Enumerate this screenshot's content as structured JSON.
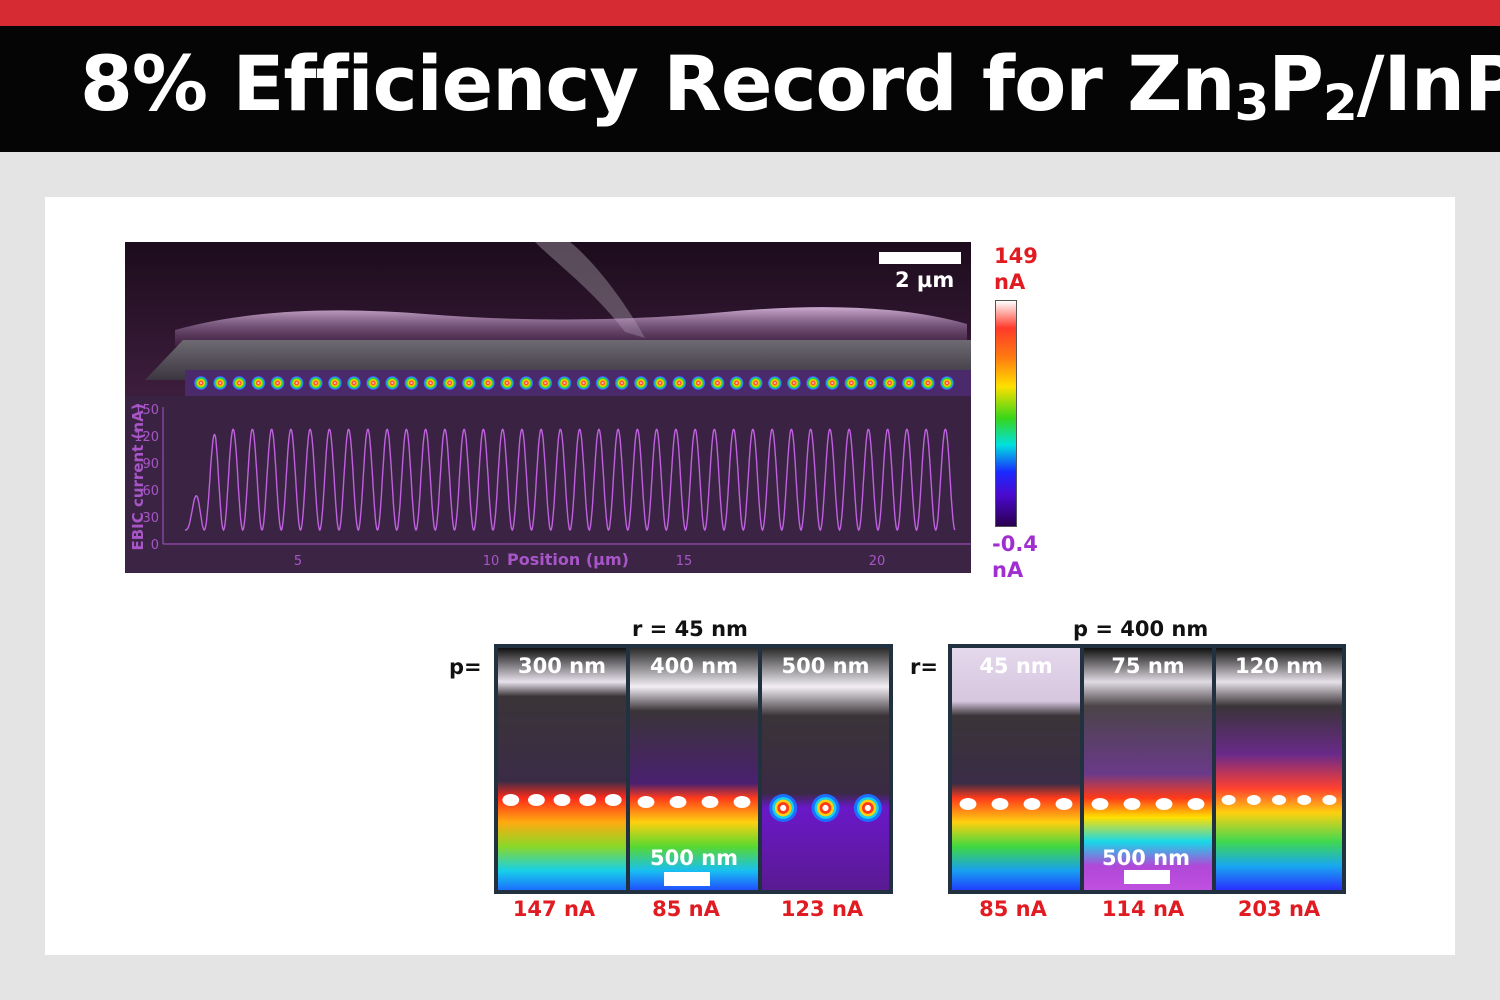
{
  "header": {
    "title_pre": "8% Efficiency Record for Zn",
    "sub1": "3",
    "title_mid": "P",
    "sub2": "2",
    "title_post": "/InP"
  },
  "main_figure": {
    "scale_bar": "2 µm",
    "y_axis_label": "EBIC current (nA)",
    "y_ticks": [
      "150",
      "120",
      "90",
      "60",
      "30",
      "0"
    ],
    "x_axis_label": "Position (µm)",
    "x_ticks": [
      "5",
      "10",
      "15",
      "20"
    ],
    "peak_count": 40
  },
  "colorbar": {
    "max_value": "149",
    "max_unit": "nA",
    "min_value": "-0.4",
    "min_unit": "nA",
    "colors": [
      "#ffffff",
      "#ff3a2a",
      "#ff7a10",
      "#ffe000",
      "#38d618",
      "#00e0e0",
      "#1a2aff",
      "#4a0ad0",
      "#2a0050"
    ]
  },
  "group_left": {
    "header": "r = 45 nm",
    "row_label": "p=",
    "panels": [
      {
        "label": "300 nm",
        "current": "147 nA"
      },
      {
        "label": "400 nm",
        "current": "85 nA",
        "scale_bar": "500 nm"
      },
      {
        "label": "500 nm",
        "current": "123 nA"
      }
    ]
  },
  "group_right": {
    "header": "p = 400 nm",
    "row_label": "r=",
    "panels": [
      {
        "label": "45 nm",
        "current": "85 nA"
      },
      {
        "label": "75 nm",
        "current": "114 nA",
        "scale_bar": "500 nm"
      },
      {
        "label": "120 nm",
        "current": "203 nA"
      }
    ]
  }
}
